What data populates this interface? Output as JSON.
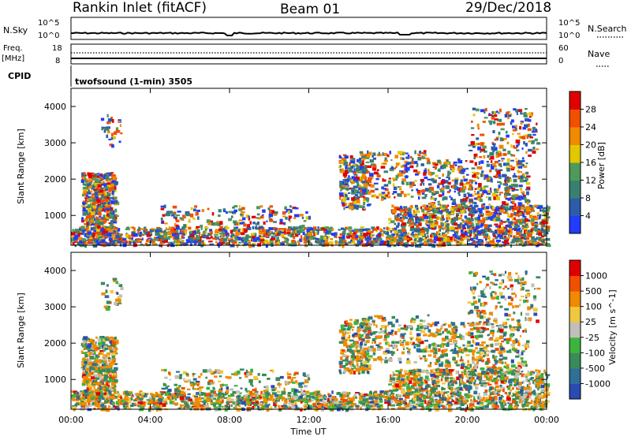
{
  "header": {
    "title": "Rankin Inlet (fitACF)",
    "beam": "Beam 01",
    "date": "29/Dec/2018"
  },
  "top_panels": {
    "nsky_label": "N.Sky",
    "nsky_ticks": [
      "10^5",
      "10^0"
    ],
    "nsearch_label": "N.Search",
    "nsearch_ticks": [
      "10^5",
      "10^0"
    ],
    "freq_label": "Freq.",
    "freq_unit": "[MHz]",
    "freq_ticks": [
      "18",
      "8"
    ],
    "nave_label": "Nave",
    "nave_ticks": [
      "60",
      "0"
    ],
    "cpid_label": "CPID",
    "cpid_value": "twofsound (1-min) 3505"
  },
  "x_axis": {
    "label": "Time UT",
    "ticks": [
      "00:00",
      "04:00",
      "08:00",
      "12:00",
      "16:00",
      "20:00",
      "00:00"
    ]
  },
  "colors": {
    "power_scale": [
      "#1f3cff",
      "#2c5caa",
      "#3a8070",
      "#4e9a5a",
      "#e2c800",
      "#f08a00",
      "#f05000",
      "#e00000"
    ],
    "velocity_scale": [
      "#2a4cb0",
      "#2f6f98",
      "#3a8a5a",
      "#3cb43c",
      "#c0c0b8",
      "#f0c840",
      "#f08a00",
      "#f05000",
      "#e00000"
    ]
  },
  "chart_data": [
    {
      "type": "heatmap",
      "title": "Power",
      "xlabel": "Time UT",
      "ylabel": "Slant Range [km]",
      "ylim": [
        180,
        4500
      ],
      "x_range_hours": [
        0,
        24
      ],
      "yticks": [
        "1000",
        "2000",
        "3000",
        "4000"
      ],
      "colorbar_label": "Power [dB]",
      "colorbar_ticks": [
        "4",
        "8",
        "12",
        "16",
        "20",
        "24",
        "28"
      ]
    },
    {
      "type": "heatmap",
      "title": "Velocity",
      "xlabel": "Time UT",
      "ylabel": "Slant Range [km]",
      "ylim": [
        180,
        4500
      ],
      "x_range_hours": [
        0,
        24
      ],
      "yticks": [
        "1000",
        "2000",
        "3000",
        "4000"
      ],
      "colorbar_label": "Velocity [m s^-1]",
      "colorbar_ticks": [
        "1000",
        "500",
        "100",
        "25",
        "-25",
        "-100",
        "-500",
        "-1000"
      ]
    }
  ]
}
